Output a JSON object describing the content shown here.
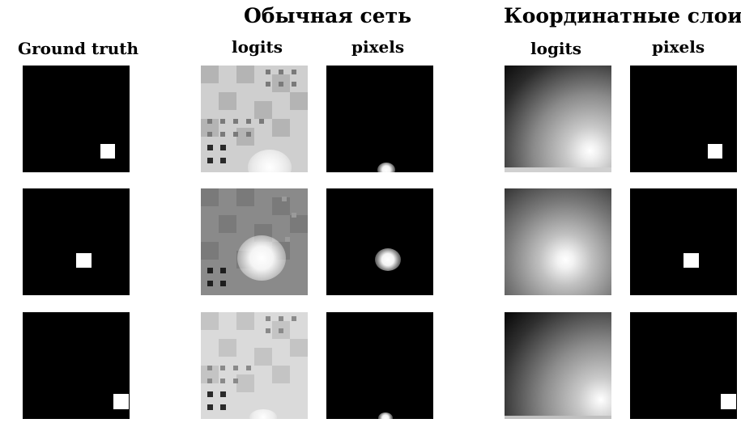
{
  "figure": {
    "title_plain_net": "Обычная сеть",
    "title_coordconv": "Координатные слои",
    "label_ground_truth": "Ground truth",
    "label_logits_plain": "logits",
    "label_pixels_plain": "pixels",
    "label_logits_coord": "logits",
    "label_pixels_coord": "pixels"
  }
}
